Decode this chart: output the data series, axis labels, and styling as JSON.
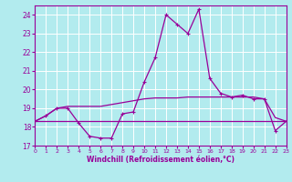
{
  "xlabel": "Windchill (Refroidissement éolien,°C)",
  "background_color": "#b2ebee",
  "line_color": "#990099",
  "grid_color": "#c8e8e8",
  "x_hours": [
    0,
    1,
    2,
    3,
    4,
    5,
    6,
    7,
    8,
    9,
    10,
    11,
    12,
    13,
    14,
    15,
    16,
    17,
    18,
    19,
    20,
    21,
    22,
    23
  ],
  "series1": [
    18.3,
    18.6,
    19.0,
    19.0,
    18.2,
    17.5,
    17.4,
    17.4,
    18.7,
    18.8,
    20.4,
    21.7,
    24.0,
    23.5,
    23.0,
    24.3,
    20.6,
    19.8,
    19.6,
    19.7,
    19.5,
    19.5,
    17.8,
    18.3
  ],
  "series2": [
    18.3,
    18.6,
    19.0,
    19.1,
    19.1,
    19.1,
    19.1,
    19.2,
    19.3,
    19.4,
    19.5,
    19.55,
    19.55,
    19.55,
    19.6,
    19.6,
    19.6,
    19.6,
    19.6,
    19.6,
    19.6,
    19.5,
    18.5,
    18.3
  ],
  "series3": [
    18.3,
    18.3,
    18.3,
    18.3,
    18.3,
    18.3,
    18.3,
    18.3,
    18.3,
    18.3,
    18.3,
    18.3,
    18.3,
    18.3,
    18.3,
    18.3,
    18.3,
    18.3,
    18.3,
    18.3,
    18.3,
    18.3,
    18.3,
    18.3
  ],
  "ylim": [
    17,
    24.5
  ],
  "xlim": [
    0,
    23
  ],
  "yticks": [
    17,
    18,
    19,
    20,
    21,
    22,
    23,
    24
  ],
  "xticks": [
    0,
    1,
    2,
    3,
    4,
    5,
    6,
    7,
    8,
    9,
    10,
    11,
    12,
    13,
    14,
    15,
    16,
    17,
    18,
    19,
    20,
    21,
    22,
    23
  ]
}
